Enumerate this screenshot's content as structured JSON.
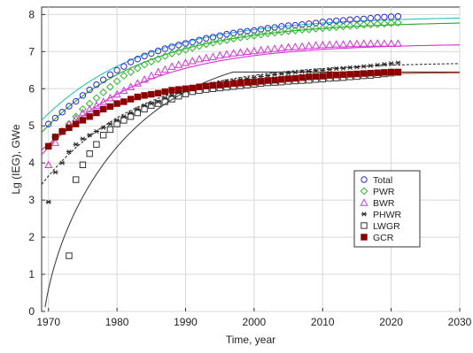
{
  "chart_data": {
    "type": "scatter",
    "title": "",
    "xlabel": "Time, year",
    "ylabel": "Lg (IEG), GWe",
    "xlim": [
      1969,
      2030
    ],
    "ylim": [
      0,
      8.2
    ],
    "x_ticks": [
      1970,
      1980,
      1990,
      2000,
      2010,
      2020,
      2030
    ],
    "y_ticks": [
      0,
      1,
      2,
      3,
      4,
      5,
      6,
      7,
      8
    ],
    "grid": true,
    "legend_position": "right-middle",
    "series": [
      {
        "name": "Total",
        "marker": "circle",
        "color": "#2a2ad8",
        "fill": "none",
        "fit_color": "#27c3c3",
        "fit_dash": "",
        "fit_type": "exp",
        "fit_a": 7.95,
        "fit_b": 2.8,
        "fit_tau": 15,
        "x": [
          1970,
          1971,
          1972,
          1973,
          1974,
          1975,
          1976,
          1977,
          1978,
          1979,
          1980,
          1981,
          1982,
          1983,
          1984,
          1985,
          1986,
          1987,
          1988,
          1989,
          1990,
          1991,
          1992,
          1993,
          1994,
          1995,
          1996,
          1997,
          1998,
          1999,
          2000,
          2001,
          2002,
          2003,
          2004,
          2005,
          2006,
          2007,
          2008,
          2009,
          2010,
          2011,
          2012,
          2013,
          2014,
          2015,
          2016,
          2017,
          2018,
          2019,
          2020,
          2021
        ],
        "y": [
          5.05,
          5.21,
          5.37,
          5.53,
          5.66,
          5.82,
          5.97,
          6.11,
          6.24,
          6.38,
          6.5,
          6.6,
          6.72,
          6.8,
          6.88,
          6.95,
          7.02,
          7.08,
          7.13,
          7.18,
          7.22,
          7.26,
          7.31,
          7.36,
          7.39,
          7.43,
          7.47,
          7.5,
          7.53,
          7.55,
          7.57,
          7.6,
          7.63,
          7.65,
          7.68,
          7.7,
          7.71,
          7.73,
          7.75,
          7.77,
          7.8,
          7.81,
          7.83,
          7.84,
          7.86,
          7.87,
          7.88,
          7.9,
          7.92,
          7.93,
          7.94,
          7.95
        ]
      },
      {
        "name": "PWR",
        "marker": "diamond",
        "color": "#2db52d",
        "fill": "none",
        "fit_color": "#2aa82a",
        "fit_dash": "",
        "fit_type": "exp",
        "fit_a": 7.82,
        "fit_b": 3.0,
        "fit_tau": 15,
        "x": [
          1971,
          1972,
          1973,
          1974,
          1975,
          1976,
          1977,
          1978,
          1979,
          1980,
          1981,
          1982,
          1983,
          1984,
          1985,
          1986,
          1987,
          1988,
          1989,
          1990,
          1991,
          1992,
          1993,
          1994,
          1995,
          1996,
          1997,
          1998,
          1999,
          2000,
          2001,
          2002,
          2003,
          2004,
          2005,
          2006,
          2007,
          2008,
          2009,
          2010,
          2011,
          2012,
          2013,
          2014,
          2015,
          2016,
          2017,
          2018,
          2019,
          2020,
          2021
        ],
        "y": [
          4.7,
          4.85,
          5.05,
          5.25,
          5.45,
          5.6,
          5.75,
          5.9,
          6.05,
          6.2,
          6.35,
          6.45,
          6.55,
          6.65,
          6.73,
          6.8,
          6.88,
          6.95,
          7.0,
          7.05,
          7.1,
          7.15,
          7.2,
          7.24,
          7.28,
          7.31,
          7.35,
          7.38,
          7.41,
          7.43,
          7.46,
          7.49,
          7.51,
          7.53,
          7.55,
          7.57,
          7.59,
          7.6,
          7.62,
          7.63,
          7.65,
          7.66,
          7.68,
          7.69,
          7.7,
          7.72,
          7.73,
          7.74,
          7.75,
          7.77,
          7.78
        ]
      },
      {
        "name": "BWR",
        "marker": "triangle",
        "color": "#d632d6",
        "fill": "none",
        "fit_color": "#d632d6",
        "fit_dash": "",
        "fit_type": "exp",
        "fit_a": 7.22,
        "fit_b": 3.0,
        "fit_tau": 14,
        "x": [
          1970,
          1971,
          1972,
          1973,
          1974,
          1975,
          1976,
          1977,
          1978,
          1979,
          1980,
          1981,
          1982,
          1983,
          1984,
          1985,
          1986,
          1987,
          1988,
          1989,
          1990,
          1991,
          1992,
          1993,
          1994,
          1995,
          1996,
          1997,
          1998,
          1999,
          2000,
          2001,
          2002,
          2003,
          2004,
          2005,
          2006,
          2007,
          2008,
          2009,
          2010,
          2011,
          2012,
          2013,
          2014,
          2015,
          2016,
          2017,
          2018,
          2019,
          2020,
          2021
        ],
        "y": [
          3.95,
          4.55,
          4.85,
          5.05,
          5.2,
          5.35,
          5.45,
          5.55,
          5.65,
          5.75,
          5.85,
          5.95,
          6.05,
          6.15,
          6.25,
          6.35,
          6.45,
          6.52,
          6.6,
          6.65,
          6.7,
          6.75,
          6.8,
          6.83,
          6.86,
          6.9,
          6.93,
          6.96,
          6.98,
          7.0,
          7.02,
          7.04,
          7.06,
          7.08,
          7.1,
          7.12,
          7.13,
          7.14,
          7.16,
          7.17,
          7.18,
          7.19,
          7.2,
          7.2,
          7.21,
          7.21,
          7.22,
          7.22,
          7.22,
          7.22,
          7.22,
          7.22
        ]
      },
      {
        "name": "PHWR",
        "marker": "star",
        "color": "#222222",
        "fill": "none",
        "fit_color": "#333333",
        "fit_dash": "3,2",
        "fit_type": "exp",
        "fit_a": 6.72,
        "fit_b": 3.3,
        "fit_tau": 14,
        "x": [
          1970,
          1971,
          1972,
          1973,
          1974,
          1975,
          1976,
          1977,
          1978,
          1979,
          1980,
          1981,
          1982,
          1983,
          1984,
          1985,
          1986,
          1987,
          1988,
          1989,
          1990,
          1991,
          1992,
          1993,
          1994,
          1995,
          1996,
          1997,
          1998,
          1999,
          2000,
          2001,
          2002,
          2003,
          2004,
          2005,
          2006,
          2007,
          2008,
          2009,
          2010,
          2011,
          2012,
          2013,
          2014,
          2015,
          2016,
          2017,
          2018,
          2019,
          2020,
          2021
        ],
        "y": [
          2.95,
          3.75,
          4.0,
          4.3,
          4.5,
          4.65,
          4.75,
          4.85,
          4.95,
          5.05,
          5.15,
          5.25,
          5.35,
          5.45,
          5.55,
          5.6,
          5.65,
          5.75,
          5.82,
          5.9,
          5.95,
          6.0,
          6.05,
          6.1,
          6.13,
          6.17,
          6.2,
          6.22,
          6.25,
          6.27,
          6.3,
          6.33,
          6.35,
          6.38,
          6.4,
          6.42,
          6.44,
          6.46,
          6.47,
          6.49,
          6.5,
          6.52,
          6.54,
          6.55,
          6.57,
          6.58,
          6.6,
          6.62,
          6.64,
          6.66,
          6.68,
          6.7
        ]
      },
      {
        "name": "LWGR",
        "marker": "square",
        "color": "#333333",
        "fill": "none",
        "fit_color": "#444444",
        "fit_dash": "",
        "fit_type": "log",
        "fit_a": 6.45,
        "fit_t0": 1969.4,
        "fit_k": 0.83,
        "fit_tau": 18,
        "x": [
          1973,
          1974,
          1975,
          1976,
          1977,
          1978,
          1979,
          1980,
          1981,
          1982,
          1983,
          1984,
          1985,
          1986,
          1987,
          1988,
          1989,
          1990,
          1991,
          1992,
          1993,
          1994,
          1995,
          1996,
          1997,
          1998,
          1999,
          2000,
          2001,
          2002,
          2003,
          2004,
          2005,
          2006,
          2007,
          2008,
          2009,
          2010,
          2011,
          2012,
          2013,
          2014,
          2015,
          2016,
          2017,
          2018,
          2019,
          2020,
          2021
        ],
        "y": [
          1.5,
          3.55,
          3.95,
          4.25,
          4.5,
          4.75,
          4.9,
          5.05,
          5.15,
          5.25,
          5.35,
          5.45,
          5.55,
          5.6,
          5.65,
          5.72,
          5.8,
          5.86,
          5.92,
          5.95,
          5.98,
          6.0,
          6.02,
          6.04,
          6.06,
          6.08,
          6.1,
          6.12,
          6.14,
          6.16,
          6.17,
          6.18,
          6.2,
          6.21,
          6.22,
          6.23,
          6.25,
          6.26,
          6.28,
          6.29,
          6.3,
          6.32,
          6.33,
          6.35,
          6.36,
          6.38,
          6.4,
          6.42,
          6.44
        ]
      },
      {
        "name": "GCR",
        "marker": "square",
        "color": "#8b0000",
        "fill": "#8b0000",
        "fit_color": "#c0392b",
        "fit_dash": "",
        "fit_type": "exp",
        "fit_a": 6.45,
        "fit_b": 2.1,
        "fit_tau": 13,
        "x": [
          1970,
          1971,
          1972,
          1973,
          1974,
          1975,
          1976,
          1977,
          1978,
          1979,
          1980,
          1981,
          1982,
          1983,
          1984,
          1985,
          1986,
          1987,
          1988,
          1989,
          1990,
          1991,
          1992,
          1993,
          1994,
          1995,
          1996,
          1997,
          1998,
          1999,
          2000,
          2001,
          2002,
          2003,
          2004,
          2005,
          2006,
          2007,
          2008,
          2009,
          2010,
          2011,
          2012,
          2013,
          2014,
          2015,
          2016,
          2017,
          2018,
          2019,
          2020,
          2021
        ],
        "y": [
          4.45,
          4.7,
          4.85,
          4.95,
          5.05,
          5.15,
          5.25,
          5.35,
          5.45,
          5.52,
          5.6,
          5.65,
          5.72,
          5.78,
          5.82,
          5.85,
          5.88,
          5.92,
          5.96,
          5.98,
          6.0,
          6.02,
          6.05,
          6.07,
          6.09,
          6.1,
          6.12,
          6.14,
          6.15,
          6.17,
          6.18,
          6.2,
          6.22,
          6.23,
          6.25,
          6.27,
          6.28,
          6.3,
          6.32,
          6.33,
          6.34,
          6.36,
          6.37,
          6.38,
          6.39,
          6.4,
          6.41,
          6.42,
          6.43,
          6.44,
          6.45,
          6.45
        ]
      }
    ],
    "fit_range": [
      1969,
      2030
    ]
  }
}
